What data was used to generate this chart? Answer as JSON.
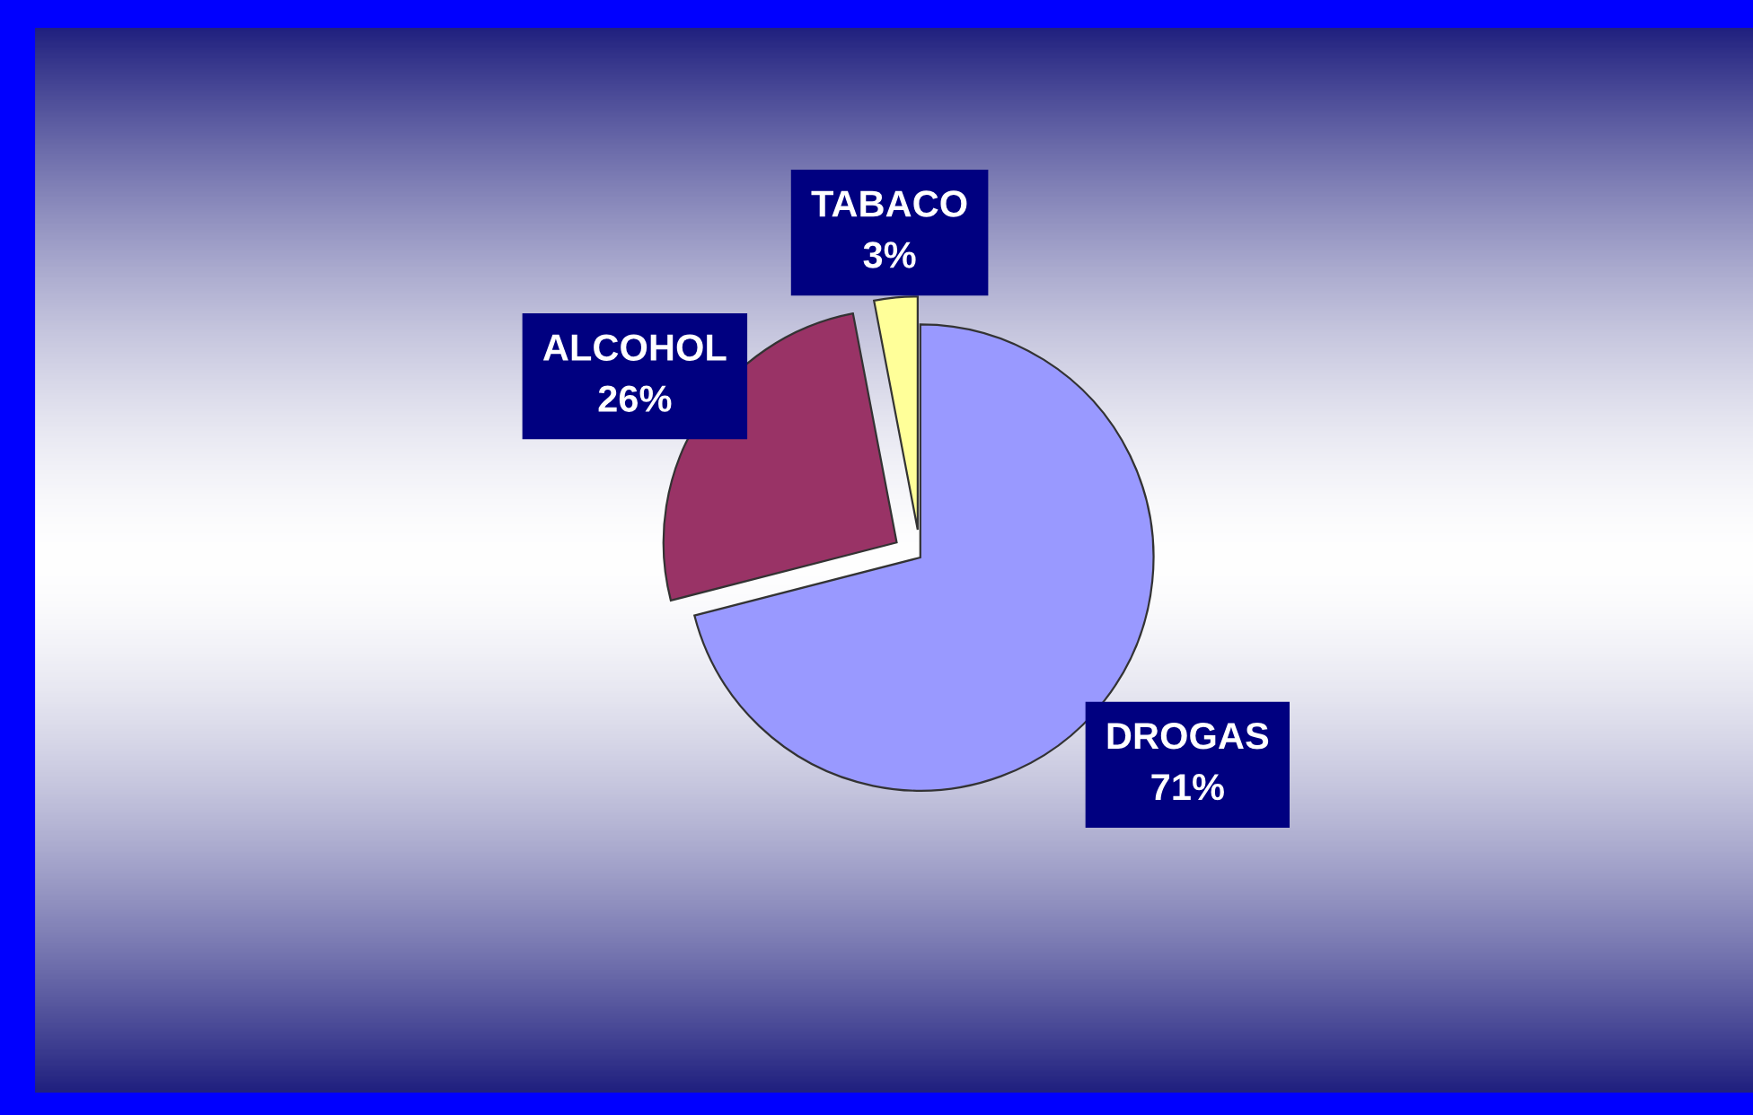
{
  "chart_data": {
    "type": "pie",
    "categories": [
      "DROGAS",
      "ALCOHOL",
      "TABACO"
    ],
    "values": [
      71,
      26,
      3
    ],
    "value_labels": [
      "71%",
      "26%",
      "3%"
    ],
    "colors": [
      "#9999ff",
      "#993366",
      "#ffff99"
    ]
  }
}
